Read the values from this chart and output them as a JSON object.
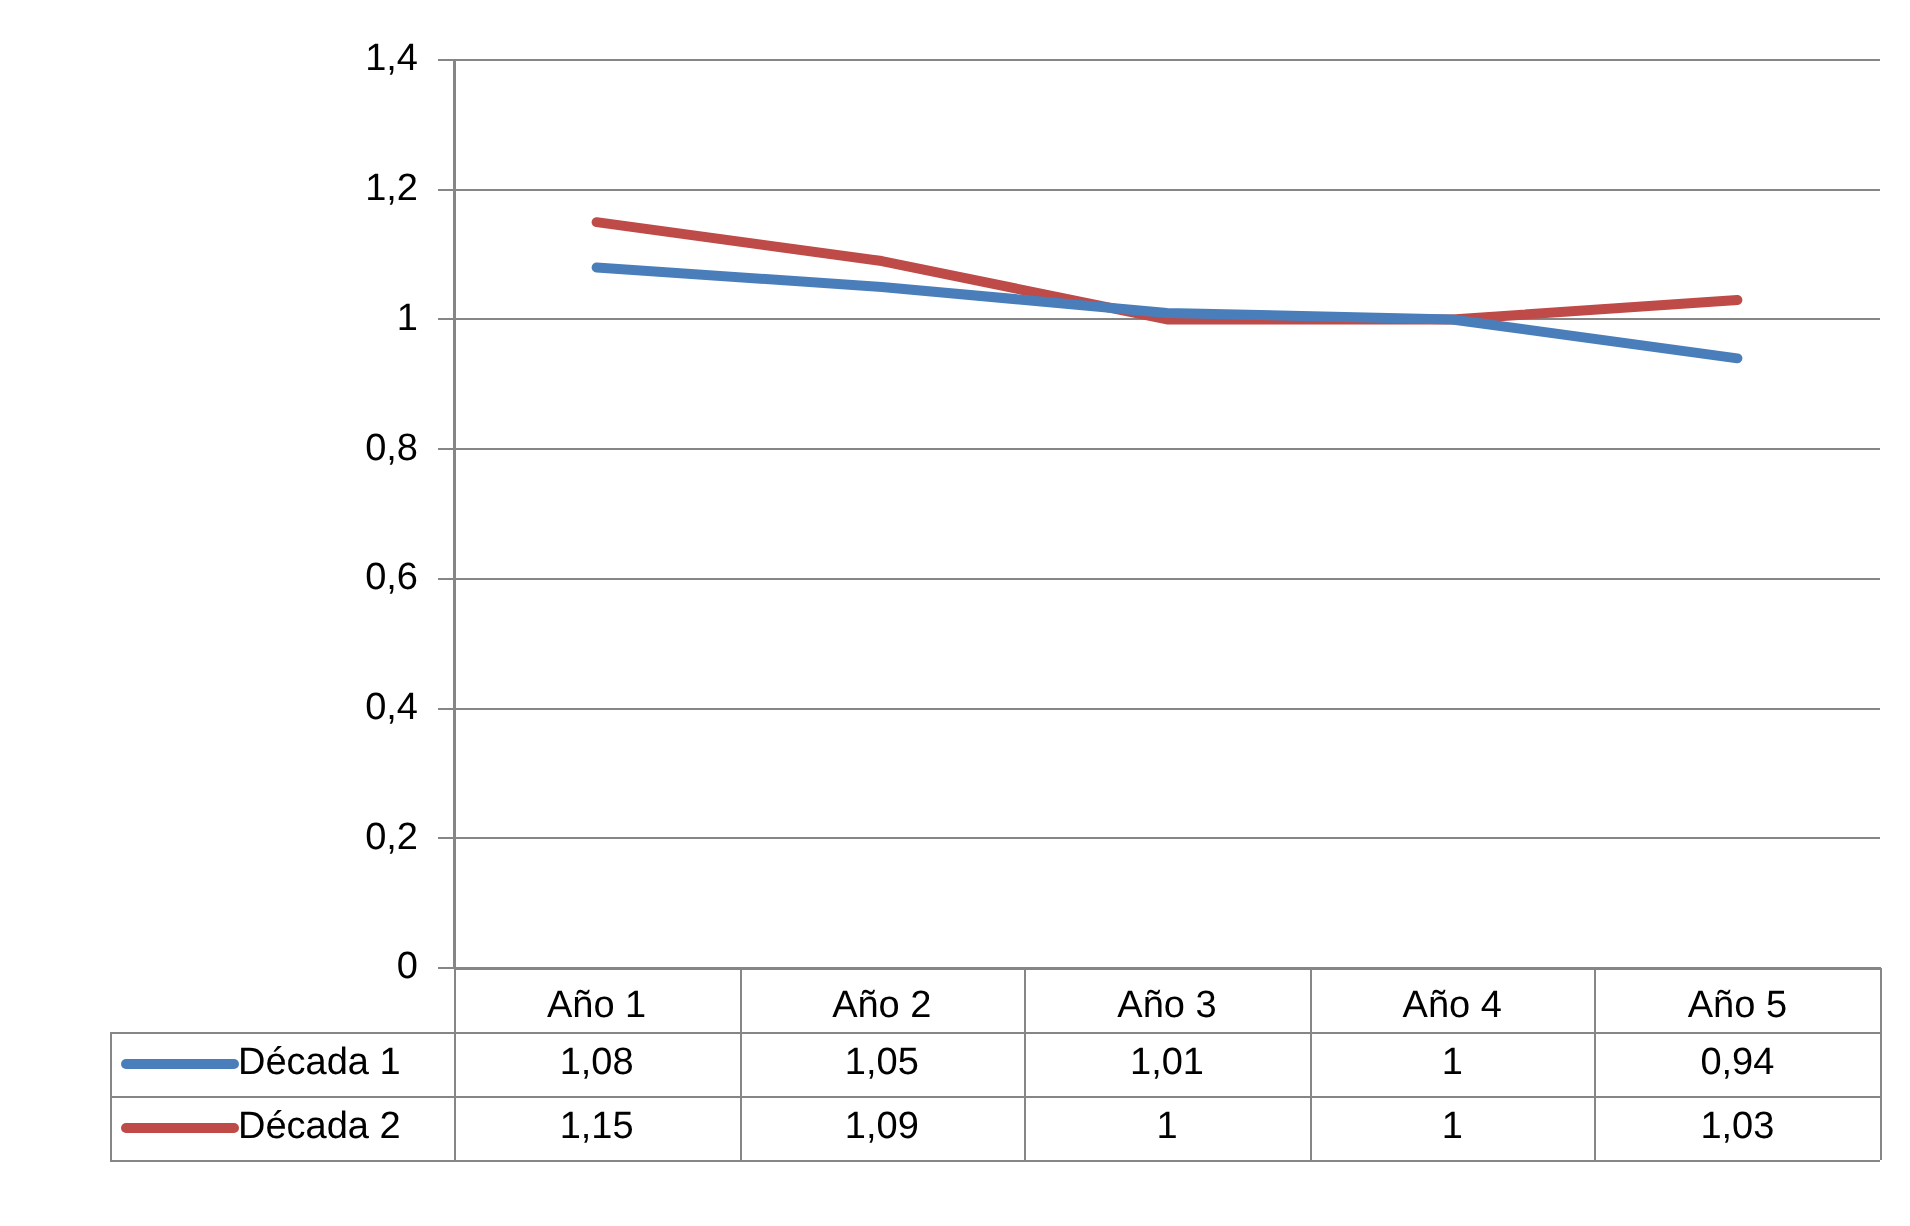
{
  "chart_data": {
    "type": "line",
    "categories": [
      "Año 1",
      "Año 2",
      "Año 3",
      "Año 4",
      "Año 5"
    ],
    "series": [
      {
        "name": "Década 1",
        "color": "#4a7ebb",
        "values": [
          1.08,
          1.05,
          1.01,
          1,
          0.94
        ],
        "value_labels": [
          "1,08",
          "1,05",
          "1,01",
          "1",
          "0,94"
        ]
      },
      {
        "name": "Década 2",
        "color": "#be4b48",
        "values": [
          1.15,
          1.09,
          1,
          1,
          1.03
        ],
        "value_labels": [
          "1,15",
          "1,09",
          "1",
          "1",
          "1,03"
        ]
      }
    ],
    "ylim": [
      0,
      1.4
    ],
    "yticks": [
      0,
      {
        "value": 0.2,
        "label": "0,2"
      },
      {
        "value": 0.4,
        "label": "0,4"
      },
      {
        "value": 0.6,
        "label": "0,6"
      },
      {
        "value": 0.8,
        "label": "0,8"
      },
      1,
      {
        "value": 1.2,
        "label": "1,2"
      },
      {
        "value": 1.4,
        "label": "1,4"
      }
    ],
    "grid": "y",
    "legend": "bottom",
    "marker": "none",
    "line_style": "solid"
  }
}
